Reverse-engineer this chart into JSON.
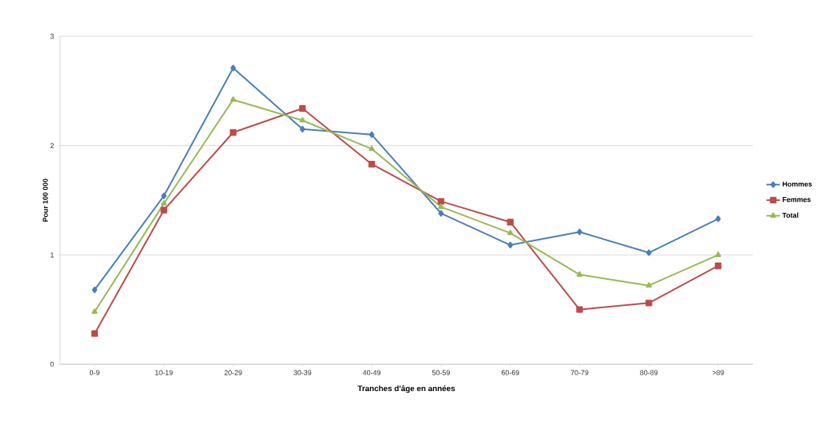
{
  "chart_data": {
    "type": "line",
    "xlabel": "Tranches d'âge en années",
    "ylabel": "Pour 100 000",
    "categories": [
      "0-9",
      "10-19",
      "20-29",
      "30-39",
      "40-49",
      "50-59",
      "60-69",
      "70-79",
      "80-89",
      ">89"
    ],
    "series": [
      {
        "name": "Hommes",
        "color": "#4a7ebb",
        "marker": "diamond",
        "values": [
          0.68,
          1.54,
          2.71,
          2.15,
          2.1,
          1.38,
          1.09,
          1.21,
          1.02,
          1.33
        ]
      },
      {
        "name": "Femmes",
        "color": "#be4b48",
        "marker": "square",
        "values": [
          0.28,
          1.41,
          2.12,
          2.34,
          1.83,
          1.49,
          1.3,
          0.5,
          0.56,
          0.9
        ]
      },
      {
        "name": "Total",
        "color": "#98b954",
        "marker": "triangle",
        "values": [
          0.48,
          1.47,
          2.42,
          2.23,
          1.97,
          1.44,
          1.2,
          0.82,
          0.72,
          1.0
        ]
      }
    ],
    "ylim": [
      0,
      3
    ],
    "yticks": [
      0,
      1,
      2,
      3
    ],
    "grid": "y",
    "legend": "right",
    "line_style": "solid"
  }
}
